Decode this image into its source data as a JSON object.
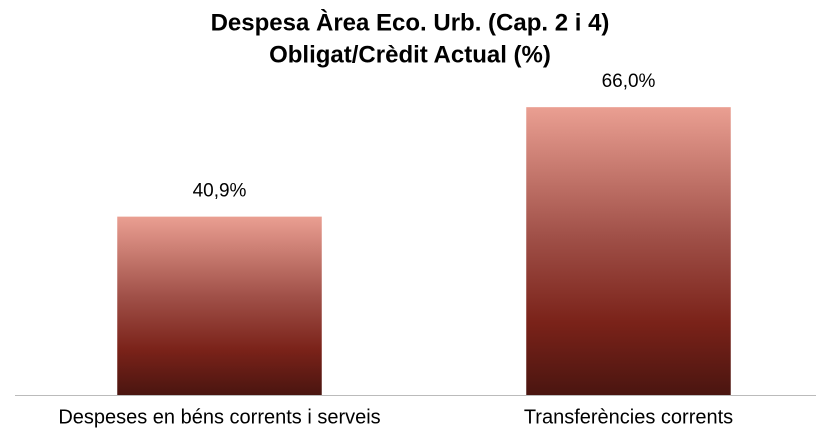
{
  "chart_data": {
    "type": "bar",
    "title": "Despesa Àrea Eco. Urb. (Cap. 2 i 4)",
    "subtitle": "Obligat/Crèdit Actual (%)",
    "categories": [
      "Despeses en béns corrents i serveis",
      "Transferències corrents"
    ],
    "values": [
      40.9,
      66.0
    ],
    "value_labels": [
      "40,9%",
      "66,0%"
    ],
    "ylim": [
      0,
      72
    ]
  }
}
